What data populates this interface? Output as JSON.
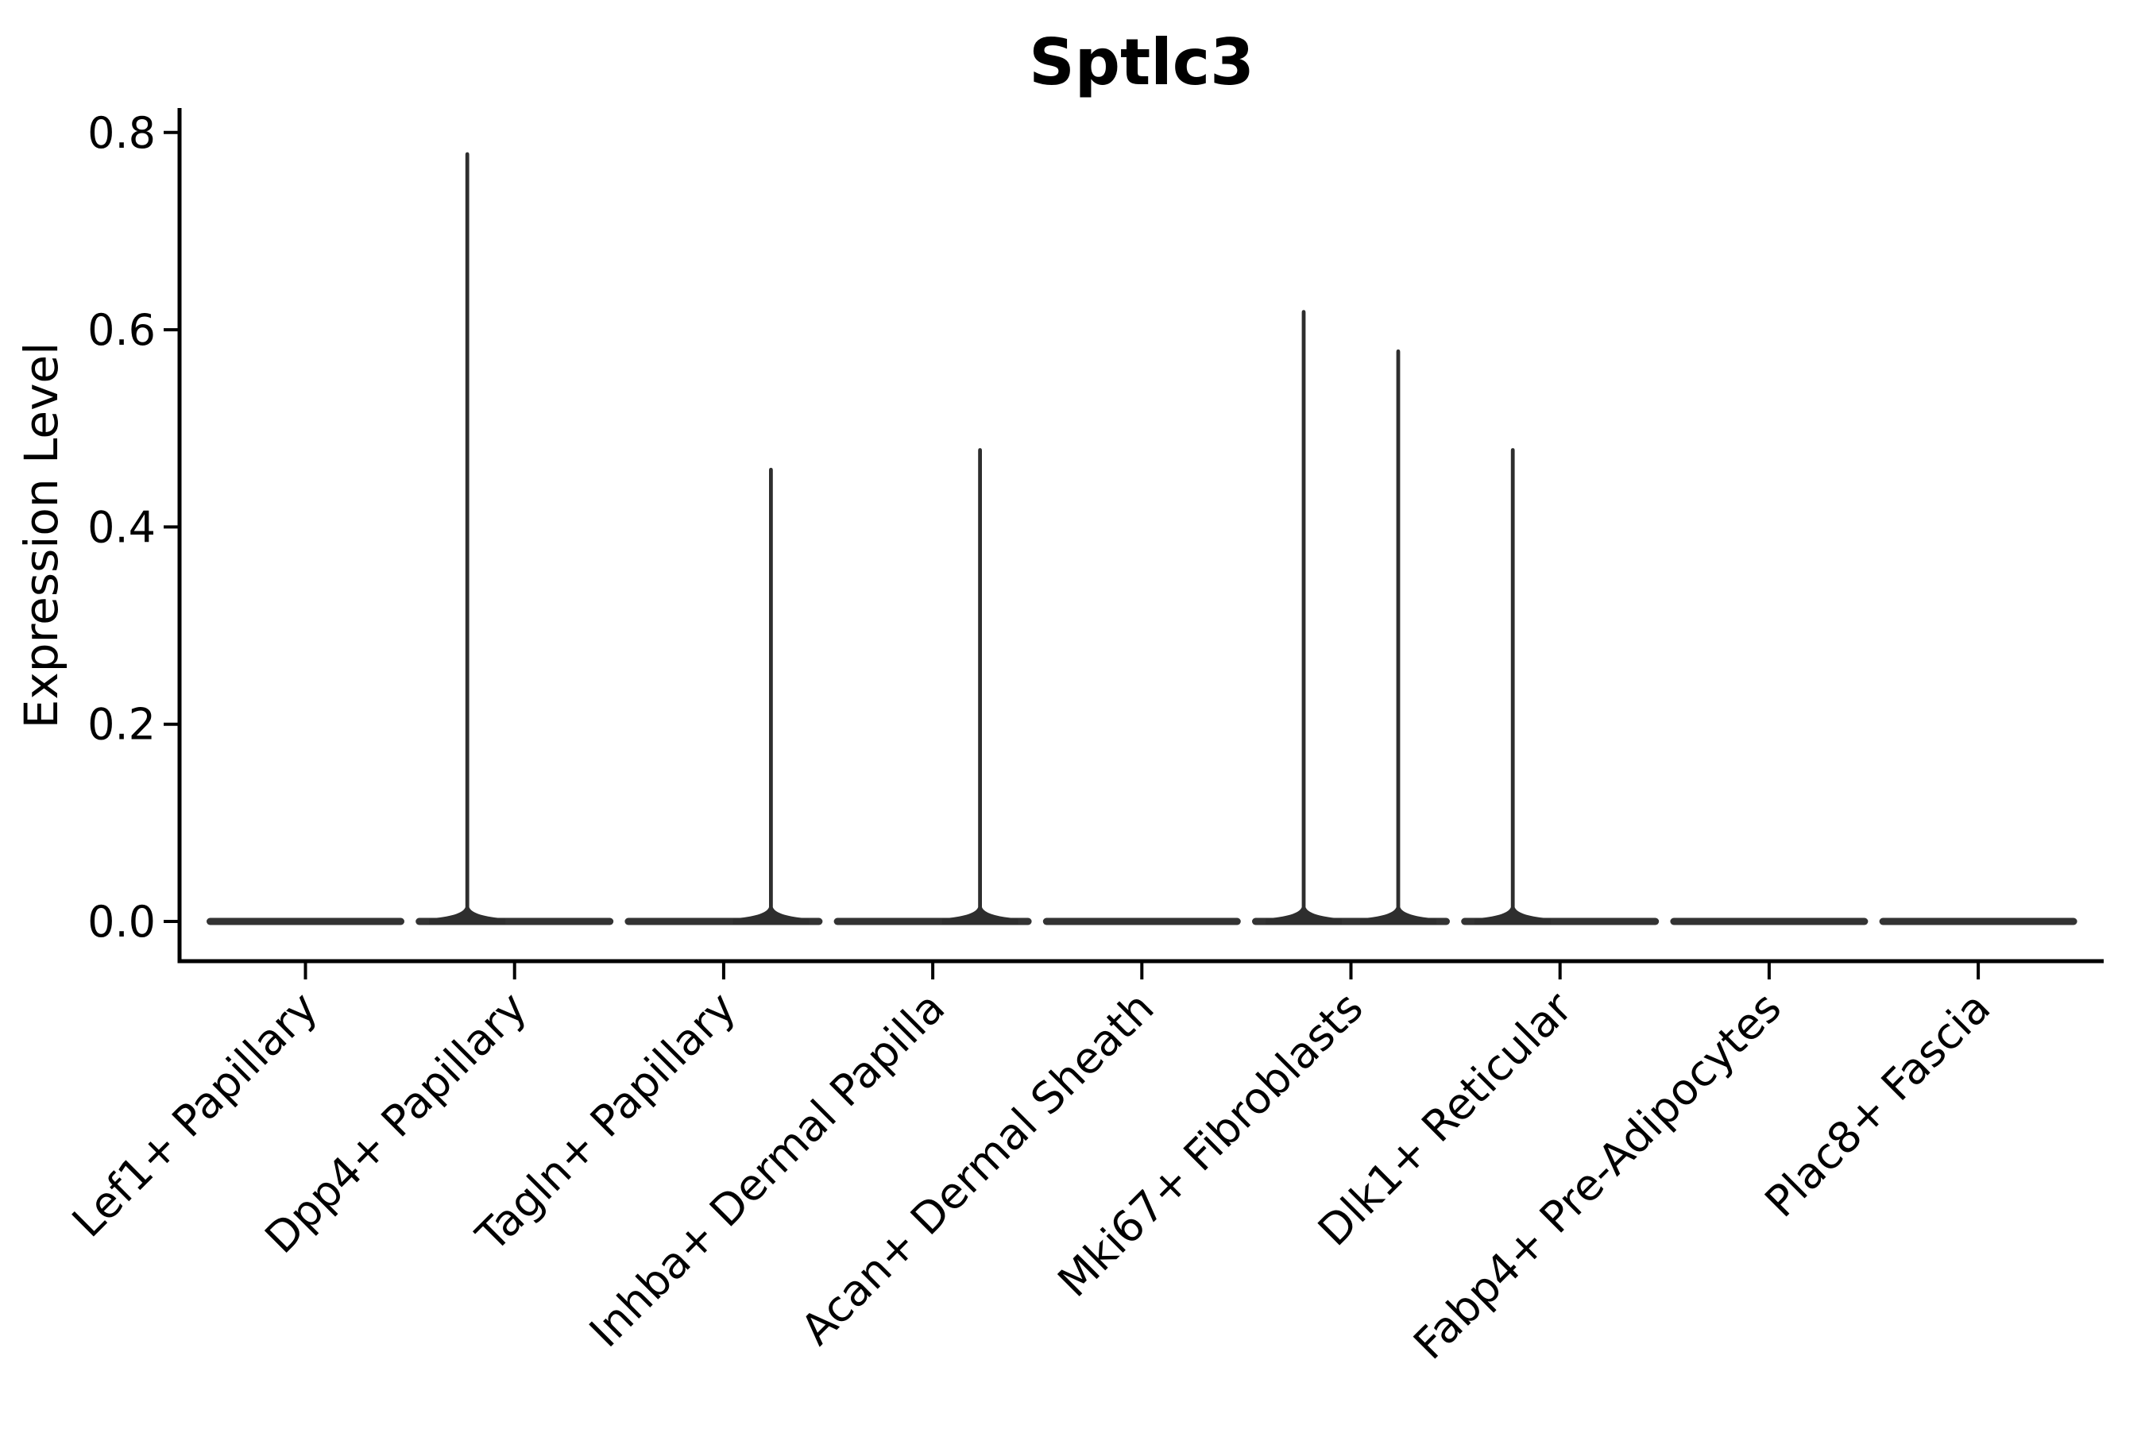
{
  "figure": {
    "title": "Sptlc3",
    "y_axis": {
      "label": "Expression Level",
      "tick_labels": [
        "0.0",
        "0.2",
        "0.4",
        "0.6",
        "0.8"
      ]
    },
    "x_axis": {
      "label": "",
      "tick_labels": [
        "Lef1+ Papillary",
        "Dpp4+ Papillary",
        "Tagln+ Papillary",
        "Inhba+ Dermal Papilla",
        "Acan+ Dermal Sheath",
        "Mki67+ Fibroblasts",
        "Dlk1+ Reticular",
        "Fabp4+ Pre-Adipocytes",
        "Plac8+ Fascia"
      ]
    }
  },
  "chart_data": {
    "type": "violin",
    "title": "Sptlc3",
    "xlabel": "",
    "ylabel": "Expression Level",
    "ylim": [
      0,
      0.8
    ],
    "yticks": [
      0.0,
      0.2,
      0.4,
      0.6,
      0.8
    ],
    "grid": false,
    "legend": null,
    "categories": [
      "Lef1+ Papillary",
      "Dpp4+ Papillary",
      "Tagln+ Papillary",
      "Inhba+ Dermal Papilla",
      "Acan+ Dermal Sheath",
      "Mki67+ Fibroblasts",
      "Dlk1+ Reticular",
      "Fabp4+ Pre-Adipocytes",
      "Plac8+ Fascia"
    ],
    "violins": [
      {
        "category": "Lef1+ Papillary",
        "body": "flat-at-zero",
        "peaks": []
      },
      {
        "category": "Dpp4+ Papillary",
        "body": "flat-at-zero",
        "peaks": [
          {
            "side": "left",
            "value": 0.78
          }
        ]
      },
      {
        "category": "Tagln+ Papillary",
        "body": "flat-at-zero",
        "peaks": [
          {
            "side": "right",
            "value": 0.46
          }
        ]
      },
      {
        "category": "Inhba+ Dermal Papilla",
        "body": "flat-at-zero",
        "peaks": [
          {
            "side": "right",
            "value": 0.48
          }
        ]
      },
      {
        "category": "Acan+ Dermal Sheath",
        "body": "flat-at-zero",
        "peaks": []
      },
      {
        "category": "Mki67+ Fibroblasts",
        "body": "flat-at-zero",
        "peaks": [
          {
            "side": "left",
            "value": 0.62
          },
          {
            "side": "right",
            "value": 0.58
          }
        ]
      },
      {
        "category": "Dlk1+ Reticular",
        "body": "flat-at-zero",
        "peaks": [
          {
            "side": "left",
            "value": 0.48
          }
        ]
      },
      {
        "category": "Fabp4+ Pre-Adipocytes",
        "body": "flat-at-zero",
        "peaks": []
      },
      {
        "category": "Plac8+ Fascia",
        "body": "flat-at-zero",
        "peaks": []
      }
    ]
  },
  "colors": {
    "background": "#ffffff",
    "violin": "#333333",
    "spike": "#2e2e2e",
    "axis": "#000000",
    "text": "#000000"
  }
}
